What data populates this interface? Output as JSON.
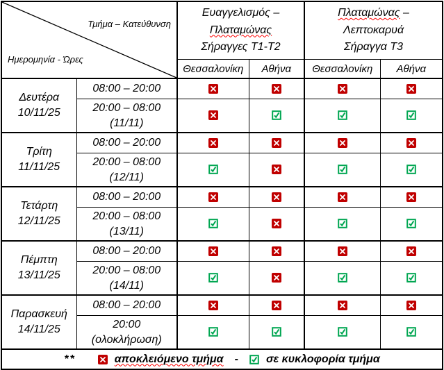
{
  "corner": {
    "top": "Τμήμα – Κατεύθυνση",
    "bottom": "Ημερομηνία - Ώρες"
  },
  "header": {
    "group1": {
      "line1": "Ευαγγελισμός –",
      "line2": "Πλαταμώνας",
      "line3": "Σήραγγες Τ1-Τ2"
    },
    "group2": {
      "line1_word": "Πλαταμώνας",
      "line1_dash": " –",
      "line2": "Λεπτοκαρυά",
      "line3": "Σήραγγα Τ3"
    },
    "directions": [
      "Θεσσαλονίκη",
      "Αθήνα",
      "Θεσσαλονίκη",
      "Αθήνα"
    ]
  },
  "schedule": [
    {
      "day": "Δευτέρα",
      "date": "10/11/25",
      "slots": [
        {
          "time": "08:00 – 20:00",
          "note": "",
          "statuses": [
            "closed",
            "closed",
            "closed",
            "closed"
          ]
        },
        {
          "time": "20:00 – 08:00",
          "note": "(11/11)",
          "statuses": [
            "closed",
            "open",
            "open",
            "open"
          ]
        }
      ]
    },
    {
      "day": "Τρίτη",
      "date": "11/11/25",
      "slots": [
        {
          "time": "08:00 – 20:00",
          "note": "",
          "statuses": [
            "closed",
            "closed",
            "closed",
            "closed"
          ]
        },
        {
          "time": "20:00 – 08:00",
          "note": "(12/11)",
          "statuses": [
            "open",
            "closed",
            "open",
            "open"
          ]
        }
      ]
    },
    {
      "day": "Τετάρτη",
      "date": "12/11/25",
      "slots": [
        {
          "time": "08:00 – 20:00",
          "note": "",
          "statuses": [
            "closed",
            "closed",
            "closed",
            "closed"
          ]
        },
        {
          "time": "20:00 – 08:00",
          "note": "(13/11)",
          "statuses": [
            "open",
            "closed",
            "open",
            "open"
          ]
        }
      ]
    },
    {
      "day": "Πέμπτη",
      "date": "13/11/25",
      "slots": [
        {
          "time": "08:00 – 20:00",
          "note": "",
          "statuses": [
            "closed",
            "closed",
            "closed",
            "closed"
          ]
        },
        {
          "time": "20:00 – 08:00",
          "note": "(14/11)",
          "statuses": [
            "open",
            "closed",
            "open",
            "open"
          ]
        }
      ]
    },
    {
      "day": "Παρασκευή",
      "date": "14/11/25",
      "slots": [
        {
          "time": "08:00 – 20:00",
          "note": "",
          "statuses": [
            "closed",
            "closed",
            "closed",
            "closed"
          ]
        },
        {
          "time": "20:00",
          "note": "(ολοκλήρωση)",
          "statuses": [
            "open",
            "open",
            "open",
            "open"
          ]
        }
      ]
    }
  ],
  "legend": {
    "prefix": "**",
    "closed_label": "αποκλειόμενο τμήμα",
    "separator": "-",
    "open_label": "σε κυκλοφορία τμήμα"
  },
  "colors": {
    "closed": "#c00000",
    "open": "#00a651",
    "squiggle": "#ff0000"
  }
}
